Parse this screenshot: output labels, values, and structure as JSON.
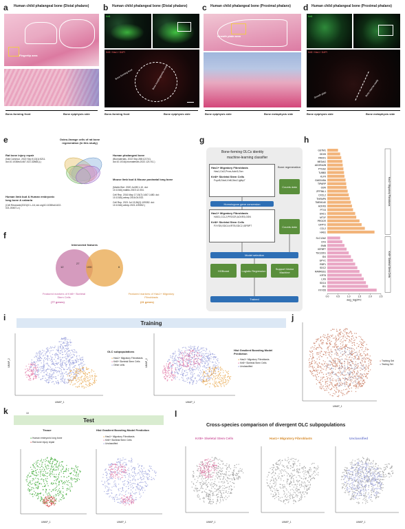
{
  "labels": {
    "a": "a",
    "b": "b",
    "c": "c",
    "d": "d",
    "e": "e",
    "f": "f",
    "g": "g",
    "h": "h",
    "i": "i",
    "j": "j",
    "k": "k",
    "l": "l"
  },
  "panel_a": {
    "title": "Human child phalangeal bone (Distal phalanx)",
    "inset_label": "Fingertip area",
    "left_axis": "Bone-forming front",
    "right_axis": "Bone epiphysis side"
  },
  "panel_b": {
    "title": "Human child phalangeal bone (Distal phalanx)",
    "stain1": "Krt8",
    "stain2": "Krt8 / Has1 / DAPI",
    "circle_label1": "Bone-forming front",
    "circle_label2": "Bone morphogenetic centre",
    "left_axis": "Bone-forming front",
    "right_axis": "Bone epiphysis side"
  },
  "panel_c": {
    "title": "Human child phalangeal bone (Proximal phalanx)",
    "inset_label": "Growth plate area",
    "left_axis": "Bone epiphysis side",
    "right_axis": "Bone metaphysis side"
  },
  "panel_d": {
    "title": "Human child phalangeal bone (Proximal phalanx)",
    "stain1": "Krt8",
    "stain2": "Krt8 / Has1 / DAPI",
    "inner1": "Growth plate",
    "inner2": "Bone marrow cavity",
    "left_axis": "Bone epiphysis side",
    "right_axis": "Bone metaphysis side"
  },
  "panel_e": {
    "center_title": "Osteo-lineage cells of rat bone regeneration (in this study)",
    "left_title": "Rat bone injury repair",
    "left_ref": "(Nat Commun. 2022 Sep 5;13(1):5211. doi:10.1038/s41467-022-32868-y.)",
    "right_title": "Human phalangeal bone",
    "right_ref": "(Biomaterials. 2022 Sep;288:121741. doi:10.1016/j.biomaterials.2022.121741.)",
    "bottom_left_title": "Human limb bud & Human embryonic long bone & calvaria",
    "bottom_left_ref": "(Cell Research(2021)0:1–16; doi.org/10.1038/s41422-021-00467-z.)",
    "bottom_right_title": "Mouse limb bud & Mouse postnatal long bone",
    "bottom_right_ref1": "(Matrix Biol. 2020 Jul;89:1-10. doi: 10.1016/j.matbio.2019.12.004.",
    "bottom_right_ref2": "Cell Rep. 2016 May 17;15(7):1467-1480. doi: 10.1016/j.celrep.2016.04.043.",
    "bottom_right_ref3": "Cell Rep. 2021 Jul 13;36(2):109352. doi: 10.1016/j.celrep.2021.109352.)"
  },
  "panel_f": {
    "title": "Intersected features",
    "left_num": "12",
    "mid_num": "27",
    "right_num": "6",
    "center_num": "1000",
    "left_caption": "Featured markers of Krt8+ Skeletal Stem Cells",
    "left_count": "(77 genes)",
    "right_caption": "Featured markers of Has1+ Migratory Fibroblasts",
    "right_count": "(21 genes)"
  },
  "panel_g": {
    "title1": "Bone-forming OLCs identity",
    "title2": "machine-learning classifier",
    "box1_a": "Has1+ Migratory Fibroblasts",
    "box1_a_genes": "Has1,Ccl2,Procr,Ackr3,Gsn",
    "box1_b": "Krt8+ Skeletal Stem Cells",
    "box1_b_genes": "Fxyd5,Sdc4,Krt8,Sdc2,Igfbp7",
    "side1_title": "Bone regeneration",
    "side1_box": "Counts data",
    "convert": "Homologous gene conversion",
    "box2_a": "Has1+ Migratory Fibroblasts",
    "box2_a_genes": "HAS1,CCL2,PROCR,ACKR3,GSN",
    "box2_b": "Krt8+ Skeletal Stem Cells",
    "box2_b_genes": "FXYD5,SDC4,KRT8,SDC2,IGFBP7",
    "side2_box": "Counts data",
    "model": "Model selection",
    "m1": "HGBoost",
    "m2": "Logistic Regression",
    "m3": "Support Vector Machine",
    "trained": "Trained"
  },
  "panel_h": {
    "xlabel": "avg_log2FC",
    "group1": "Has1+ Migratory Fibroblasts",
    "group2": "Krt8+ Skeletal Stem Cells"
  },
  "chart_data": [
    {
      "type": "bar",
      "orientation": "horizontal",
      "xlabel": "avg_log2FC",
      "xticks": [
        "0.0",
        "0.5",
        "1.0",
        "1.5",
        "2.0",
        "2.5"
      ],
      "xlim": [
        0,
        2.5
      ],
      "series": [
        {
          "name": "Has1+ Migratory Fibroblasts",
          "color": "#f2b47a",
          "categories": [
            "GSTM1",
            "DDX5",
            "PANX1",
            "MEDAG",
            "ADORA2B",
            "PTGS2",
            "TUBB3",
            "KLF9",
            "GADD45A",
            "TIPARP",
            "GSN",
            "ZFP36L1",
            "CXCL2",
            "TNFAIP6",
            "TMEM140",
            "ACKR3",
            "PTX3",
            "ENC1",
            "MT1F",
            "PROCR",
            "GFPT2",
            "CCL2",
            "HAS1"
          ],
          "values": [
            0.5,
            0.6,
            0.65,
            0.7,
            0.72,
            0.75,
            0.78,
            0.8,
            0.85,
            0.88,
            0.9,
            0.95,
            1.0,
            1.05,
            1.1,
            1.15,
            1.2,
            1.3,
            1.35,
            1.5,
            1.6,
            1.75,
            2.2
          ]
        },
        {
          "name": "Krt8+ Skeletal Stem Cells",
          "color": "#e9a6c4",
          "categories": [
            "SLC12A2",
            "CFH",
            "EMB",
            "IGFBP7",
            "TSC22D1",
            "ID4",
            "EPYC",
            "RBP1",
            "SDC2",
            "RARRES1",
            "KRT8",
            "LXN",
            "SDC4",
            "ID1",
            "FXYD5"
          ],
          "values": [
            0.6,
            0.7,
            0.8,
            0.9,
            1.0,
            1.1,
            1.2,
            1.3,
            1.4,
            1.5,
            1.6,
            1.7,
            1.8,
            1.9,
            2.3
          ]
        }
      ]
    }
  ],
  "panel_i": {
    "banner": "Training",
    "left_title": "OLC subpopulations",
    "left_legend": [
      "Has1+ Migratory Fibroblasts",
      "Krt8+ Skeletal Stem Cells",
      "Other cells"
    ],
    "right_title": "Hist Gradient Boosting Model Prediction",
    "right_legend": [
      "Has1+ Migratory Fibroblasts",
      "Krt8+ Skeletal Stem Cells",
      "Unclassified"
    ],
    "xlabel": "UMAP_1",
    "ylabel": "UMAP_2"
  },
  "panel_j": {
    "legend": [
      "Training Set",
      "Testing Set"
    ],
    "xlabel": "UMAP_1",
    "ylabel": "UMAP_2"
  },
  "panel_k": {
    "banner": "Test",
    "left_title": "Tissue",
    "left_legend": [
      "Human embryonic long bone",
      "Rat bone injury repair"
    ],
    "right_title": "Hist Gradient Boosting Model Prediction",
    "right_legend": [
      "Has1+ Migratory Fibroblasts",
      "Krt8+ Skeletal Stem Cells",
      "Unclassified"
    ],
    "xlabel": "UMAP_1",
    "ylabel": "UMAP_2",
    "extra": "10"
  },
  "panel_l": {
    "title": "Cross-species comparison of divergent OLC subpopulations",
    "sub1": "Krt8+ Skeletal Stem Cells",
    "sub2": "Has1+ Migratory Fibroblasts",
    "sub3": "Unclassified",
    "xlabel": "UMAP_1",
    "ylabel": "UMAP_2"
  },
  "colors": {
    "orange": "#e8a64a",
    "pink": "#e27aa8",
    "lavender": "#9aa0dc",
    "green": "#3aa832",
    "red": "#d94a4a",
    "gray": "#9a9a9a",
    "bannerBlue": "#dce8f5",
    "bannerGreen": "#d9ecd0"
  }
}
